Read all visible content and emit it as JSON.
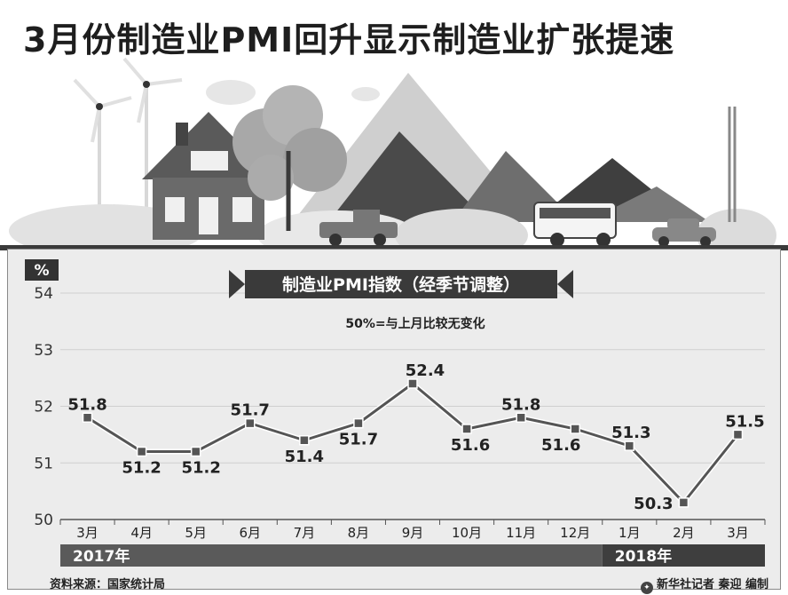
{
  "title": "3月份制造业PMI回升显示制造业扩张提速",
  "chart_data": {
    "type": "line",
    "title": "制造业PMI指数（经季节调整）",
    "subtitle": "50%=与上月比较无变化",
    "ylabel": "%",
    "ylim": [
      50,
      54
    ],
    "yticks": [
      50,
      51,
      52,
      53,
      54
    ],
    "categories": [
      "3月",
      "4月",
      "5月",
      "6月",
      "7月",
      "8月",
      "9月",
      "10月",
      "11月",
      "12月",
      "1月",
      "2月",
      "3月"
    ],
    "values": [
      51.8,
      51.2,
      51.2,
      51.7,
      51.4,
      51.7,
      52.4,
      51.6,
      51.8,
      51.6,
      51.3,
      50.3,
      51.5
    ],
    "labels": [
      "51.8",
      "51.2",
      "51.2",
      "51.7",
      "51.4",
      "51.7",
      "52.4",
      "51.6",
      "51.8",
      "51.6",
      "51.3",
      "50.3",
      "51.5"
    ],
    "years": [
      {
        "label": "2017年",
        "from": 0,
        "to": 9
      },
      {
        "label": "2018年",
        "from": 10,
        "to": 12
      }
    ],
    "grid": true,
    "colors": {
      "line": "#555555",
      "marker": "#555555",
      "banner": "#3a3a3a",
      "year_bar": "#555555"
    }
  },
  "footer": {
    "source": "资料来源：国家统计局",
    "credit": "新华社记者  秦迎  编制"
  }
}
